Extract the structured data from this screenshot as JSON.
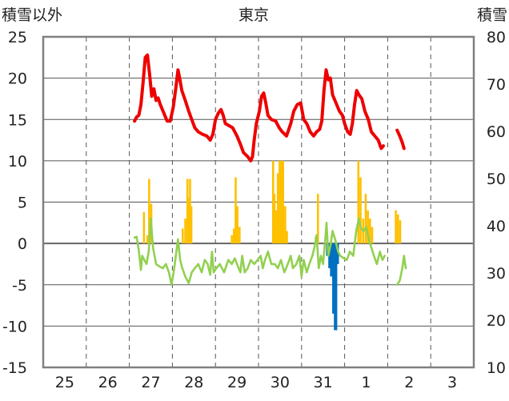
{
  "chart_data": {
    "type": "bar+line",
    "title": "東京",
    "ylabel_left": "積雪以外",
    "ylabel_right": "積雪",
    "ylim_left": [
      -15,
      25
    ],
    "ylim_right": [
      10,
      80
    ],
    "yticks_left": [
      25,
      20,
      15,
      10,
      5,
      0,
      -5,
      -10,
      -15
    ],
    "yticks_right": [
      80,
      70,
      60,
      50,
      40,
      30,
      20,
      10
    ],
    "x_day_labels": [
      "25",
      "26",
      "27",
      "28",
      "29",
      "30",
      "31",
      "1",
      "2",
      "3"
    ],
    "colors": {
      "red_line": "#ee0000",
      "green_line": "#92d050",
      "orange_bars": "#ffc000",
      "blue_bars": "#0070c0",
      "grid": "#555555",
      "frame": "#808080"
    },
    "series": [
      {
        "axis": "left",
        "style": "line",
        "color": "red",
        "points": [
          [
            26.62,
            14.8
          ],
          [
            26.67,
            15.3
          ],
          [
            26.72,
            15.5
          ],
          [
            26.77,
            16.8
          ],
          [
            26.82,
            19.5
          ],
          [
            26.87,
            22.5
          ],
          [
            26.92,
            22.8
          ],
          [
            26.97,
            20.5
          ],
          [
            27.02,
            17.8
          ],
          [
            27.07,
            18.7
          ],
          [
            27.12,
            17.3
          ],
          [
            27.17,
            17.6
          ],
          [
            27.22,
            16.8
          ],
          [
            27.3,
            15.8
          ],
          [
            27.38,
            14.8
          ],
          [
            27.45,
            14.8
          ],
          [
            27.52,
            16.5
          ],
          [
            27.58,
            18.8
          ],
          [
            27.63,
            21.0
          ],
          [
            27.67,
            20.0
          ],
          [
            27.72,
            18.5
          ],
          [
            27.8,
            17.3
          ],
          [
            27.88,
            16.0
          ],
          [
            27.95,
            15.0
          ],
          [
            28.02,
            14.0
          ],
          [
            28.1,
            13.5
          ],
          [
            28.2,
            13.2
          ],
          [
            28.3,
            13.0
          ],
          [
            28.38,
            12.5
          ],
          [
            28.44,
            13.2
          ],
          [
            28.5,
            15.0
          ],
          [
            28.57,
            15.8
          ],
          [
            28.63,
            16.2
          ],
          [
            28.68,
            15.5
          ],
          [
            28.73,
            14.5
          ],
          [
            28.8,
            14.3
          ],
          [
            28.9,
            14.0
          ],
          [
            29.0,
            13.0
          ],
          [
            29.08,
            12.0
          ],
          [
            29.15,
            11.0
          ],
          [
            29.25,
            10.5
          ],
          [
            29.32,
            10.0
          ],
          [
            29.36,
            10.5
          ],
          [
            29.4,
            12.5
          ],
          [
            29.45,
            14.5
          ],
          [
            29.52,
            16.0
          ],
          [
            29.57,
            17.8
          ],
          [
            29.62,
            18.2
          ],
          [
            29.67,
            17.0
          ],
          [
            29.72,
            15.5
          ],
          [
            29.8,
            15.0
          ],
          [
            29.9,
            14.8
          ],
          [
            29.98,
            14.0
          ],
          [
            30.05,
            13.5
          ],
          [
            30.15,
            13.0
          ],
          [
            30.25,
            14.5
          ],
          [
            30.32,
            16.0
          ],
          [
            30.4,
            16.8
          ],
          [
            30.48,
            17.0
          ],
          [
            30.55,
            15.0
          ],
          [
            30.62,
            14.5
          ],
          [
            30.7,
            13.5
          ],
          [
            30.78,
            13.0
          ],
          [
            30.85,
            13.5
          ],
          [
            30.92,
            13.8
          ],
          [
            30.97,
            14.8
          ],
          [
            31.02,
            18.5
          ],
          [
            31.07,
            21.0
          ],
          [
            31.12,
            19.8
          ],
          [
            31.17,
            20.0
          ],
          [
            31.22,
            18.0
          ],
          [
            31.3,
            17.0
          ],
          [
            31.38,
            16.0
          ],
          [
            31.45,
            15.5
          ],
          [
            31.5,
            14.5
          ],
          [
            31.57,
            13.5
          ],
          [
            31.63,
            13.2
          ],
          [
            31.68,
            14.5
          ],
          [
            31.73,
            16.8
          ],
          [
            31.78,
            18.5
          ],
          [
            31.83,
            18.0
          ],
          [
            31.9,
            17.5
          ],
          [
            31.97,
            16.0
          ],
          [
            32.05,
            15.0
          ],
          [
            32.12,
            13.5
          ],
          [
            32.2,
            13.0
          ],
          [
            32.28,
            12.5
          ],
          [
            32.35,
            11.5
          ],
          [
            32.4,
            11.8
          ]
        ]
      },
      {
        "axis": "left",
        "style": "line",
        "color": "red",
        "points": [
          [
            32.72,
            13.7
          ],
          [
            32.78,
            13.0
          ],
          [
            32.84,
            12.2
          ],
          [
            32.88,
            11.5
          ]
        ]
      },
      {
        "axis": "left",
        "style": "line",
        "color": "green",
        "points": [
          [
            26.62,
            0.7
          ],
          [
            26.67,
            0.8
          ],
          [
            26.72,
            -0.8
          ],
          [
            26.77,
            -3.2
          ],
          [
            26.8,
            -1.5
          ],
          [
            26.85,
            -2.0
          ],
          [
            26.9,
            -2.5
          ],
          [
            26.95,
            -1.0
          ],
          [
            27.0,
            3.0
          ],
          [
            27.05,
            -0.5
          ],
          [
            27.12,
            -2.5
          ],
          [
            27.2,
            -2.8
          ],
          [
            27.28,
            -3.0
          ],
          [
            27.35,
            -2.5
          ],
          [
            27.42,
            -3.5
          ],
          [
            27.48,
            -5.0
          ],
          [
            27.53,
            -3.5
          ],
          [
            27.58,
            -1.5
          ],
          [
            27.63,
            0.5
          ],
          [
            27.68,
            -2.0
          ],
          [
            27.73,
            -3.0
          ],
          [
            27.8,
            -4.0
          ],
          [
            27.88,
            -4.8
          ],
          [
            27.95,
            -3.5
          ],
          [
            28.02,
            -3.0
          ],
          [
            28.1,
            -2.5
          ],
          [
            28.18,
            -3.5
          ],
          [
            28.25,
            -2.0
          ],
          [
            28.32,
            -2.5
          ],
          [
            28.38,
            -3.8
          ],
          [
            28.42,
            -1.0
          ],
          [
            28.46,
            -3.5
          ],
          [
            28.52,
            -3.0
          ],
          [
            28.6,
            -2.5
          ],
          [
            28.7,
            -3.5
          ],
          [
            28.8,
            -2.0
          ],
          [
            28.88,
            -2.5
          ],
          [
            28.95,
            -1.8
          ],
          [
            29.0,
            -2.5
          ],
          [
            29.08,
            -3.5
          ],
          [
            29.12,
            -1.5
          ],
          [
            29.18,
            -3.5
          ],
          [
            29.25,
            -3.0
          ],
          [
            29.32,
            -2.0
          ],
          [
            29.4,
            -2.5
          ],
          [
            29.48,
            -2.0
          ],
          [
            29.55,
            -1.5
          ],
          [
            29.6,
            -3.0
          ],
          [
            29.65,
            -2.0
          ],
          [
            29.72,
            -1.0
          ],
          [
            29.8,
            -2.5
          ],
          [
            29.88,
            -2.5
          ],
          [
            29.95,
            -3.0
          ],
          [
            30.02,
            -2.0
          ],
          [
            30.1,
            -3.5
          ],
          [
            30.18,
            -2.5
          ],
          [
            30.25,
            -1.5
          ],
          [
            30.3,
            -3.0
          ],
          [
            30.38,
            -2.5
          ],
          [
            30.45,
            -1.5
          ],
          [
            30.5,
            -4.0
          ],
          [
            30.55,
            -2.0
          ],
          [
            30.62,
            -3.5
          ],
          [
            30.68,
            -2.5
          ],
          [
            30.75,
            -1.5
          ],
          [
            30.8,
            -0.5
          ],
          [
            30.85,
            1.0
          ],
          [
            30.9,
            -3.0
          ],
          [
            30.95,
            -1.5
          ],
          [
            31.0,
            -2.5
          ],
          [
            31.05,
            0.5
          ],
          [
            31.08,
            2.5
          ],
          [
            31.12,
            -1.5
          ],
          [
            31.18,
            0.0
          ],
          [
            31.22,
            1.5
          ],
          [
            31.28,
            0.5
          ],
          [
            31.35,
            -1.0
          ],
          [
            31.4,
            -1.5
          ],
          [
            31.48,
            -1.8
          ],
          [
            31.55,
            -2.0
          ],
          [
            31.62,
            -1.0
          ],
          [
            31.7,
            -1.5
          ],
          [
            31.77,
            1.5
          ],
          [
            31.83,
            3.0
          ],
          [
            31.88,
            1.8
          ],
          [
            31.94,
            1.5
          ],
          [
            32.0,
            2.0
          ],
          [
            32.06,
            0.5
          ],
          [
            32.12,
            -0.5
          ],
          [
            32.18,
            -1.5
          ],
          [
            32.25,
            -2.5
          ],
          [
            32.32,
            -1.0
          ],
          [
            32.38,
            -2.0
          ],
          [
            32.43,
            -1.5
          ]
        ]
      },
      {
        "axis": "left",
        "style": "line",
        "color": "green",
        "points": [
          [
            32.72,
            -5.0
          ],
          [
            32.78,
            -4.5
          ],
          [
            32.84,
            -3.0
          ],
          [
            32.88,
            -1.5
          ],
          [
            32.92,
            -3.0
          ]
        ]
      }
    ],
    "bars_orange": [
      [
        26.84,
        3.8
      ],
      [
        26.92,
        1.0
      ],
      [
        26.96,
        7.8
      ],
      [
        27.01,
        4.8
      ],
      [
        27.74,
        1.8
      ],
      [
        27.8,
        3.0
      ],
      [
        27.85,
        7.8
      ],
      [
        27.88,
        5.5
      ],
      [
        27.91,
        7.8
      ],
      [
        27.94,
        4.5
      ],
      [
        28.88,
        1.0
      ],
      [
        28.93,
        1.8
      ],
      [
        28.97,
        8.0
      ],
      [
        29.01,
        4.5
      ],
      [
        29.06,
        2.0
      ],
      [
        29.84,
        10.0
      ],
      [
        29.87,
        6.0
      ],
      [
        29.91,
        4.0
      ],
      [
        29.95,
        8.5
      ],
      [
        29.99,
        10.0
      ],
      [
        30.03,
        10.0
      ],
      [
        30.07,
        10.0
      ],
      [
        30.12,
        4.5
      ],
      [
        30.16,
        1.5
      ],
      [
        30.83,
        0.8
      ],
      [
        30.88,
        6.0
      ],
      [
        31.82,
        10.0
      ],
      [
        31.87,
        8.0
      ],
      [
        31.93,
        3.0
      ],
      [
        31.99,
        6.0
      ],
      [
        32.04,
        4.0
      ],
      [
        32.09,
        3.0
      ],
      [
        32.14,
        2.0
      ],
      [
        32.69,
        4.0
      ],
      [
        32.74,
        3.5
      ],
      [
        32.79,
        2.8
      ]
    ],
    "bars_blue": [
      [
        31.11,
        -1.5
      ],
      [
        31.16,
        -3.0
      ],
      [
        31.2,
        -4.0
      ],
      [
        31.25,
        -8.5
      ],
      [
        31.29,
        -10.5
      ],
      [
        31.33,
        -2.5
      ]
    ]
  }
}
